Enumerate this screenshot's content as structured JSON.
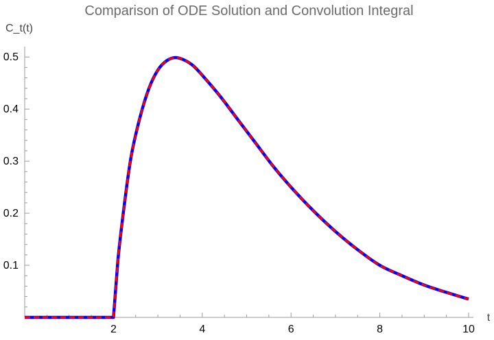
{
  "chart_data": {
    "type": "line",
    "title": "Comparison of ODE Solution and Convolution Integral",
    "xlabel": "t",
    "ylabel": "C_t(t)",
    "xlim": [
      0,
      10
    ],
    "ylim": [
      0,
      0.52
    ],
    "x_ticks": [
      2,
      4,
      6,
      8,
      10
    ],
    "y_ticks": [
      0.1,
      0.2,
      0.3,
      0.4,
      0.5
    ],
    "grid": false,
    "legend": "none",
    "series": [
      {
        "color": "#0000ff",
        "style": "solid",
        "x": [
          0,
          1,
          2,
          2.1,
          2.25,
          2.4,
          2.6,
          2.8,
          3.0,
          3.2,
          3.4,
          3.6,
          3.8,
          4.0,
          4.4,
          4.8,
          5.2,
          5.6,
          6.0,
          6.5,
          7.0,
          7.5,
          8.0,
          8.5,
          9.0,
          9.5,
          10.0
        ],
        "y": [
          0,
          0,
          0,
          0.11,
          0.22,
          0.31,
          0.385,
          0.44,
          0.475,
          0.493,
          0.499,
          0.494,
          0.483,
          0.465,
          0.425,
          0.38,
          0.335,
          0.29,
          0.25,
          0.205,
          0.165,
          0.13,
          0.1,
          0.08,
          0.062,
          0.048,
          0.035
        ]
      },
      {
        "color": "#ff0000",
        "style": "dashed",
        "x": [
          0,
          1,
          2,
          2.1,
          2.25,
          2.4,
          2.6,
          2.8,
          3.0,
          3.2,
          3.4,
          3.6,
          3.8,
          4.0,
          4.4,
          4.8,
          5.2,
          5.6,
          6.0,
          6.5,
          7.0,
          7.5,
          8.0,
          8.5,
          9.0,
          9.5,
          10.0
        ],
        "y": [
          0,
          0,
          0,
          0.11,
          0.22,
          0.31,
          0.385,
          0.44,
          0.475,
          0.493,
          0.499,
          0.494,
          0.483,
          0.465,
          0.425,
          0.38,
          0.335,
          0.29,
          0.25,
          0.205,
          0.165,
          0.13,
          0.1,
          0.08,
          0.062,
          0.048,
          0.035
        ]
      }
    ]
  }
}
